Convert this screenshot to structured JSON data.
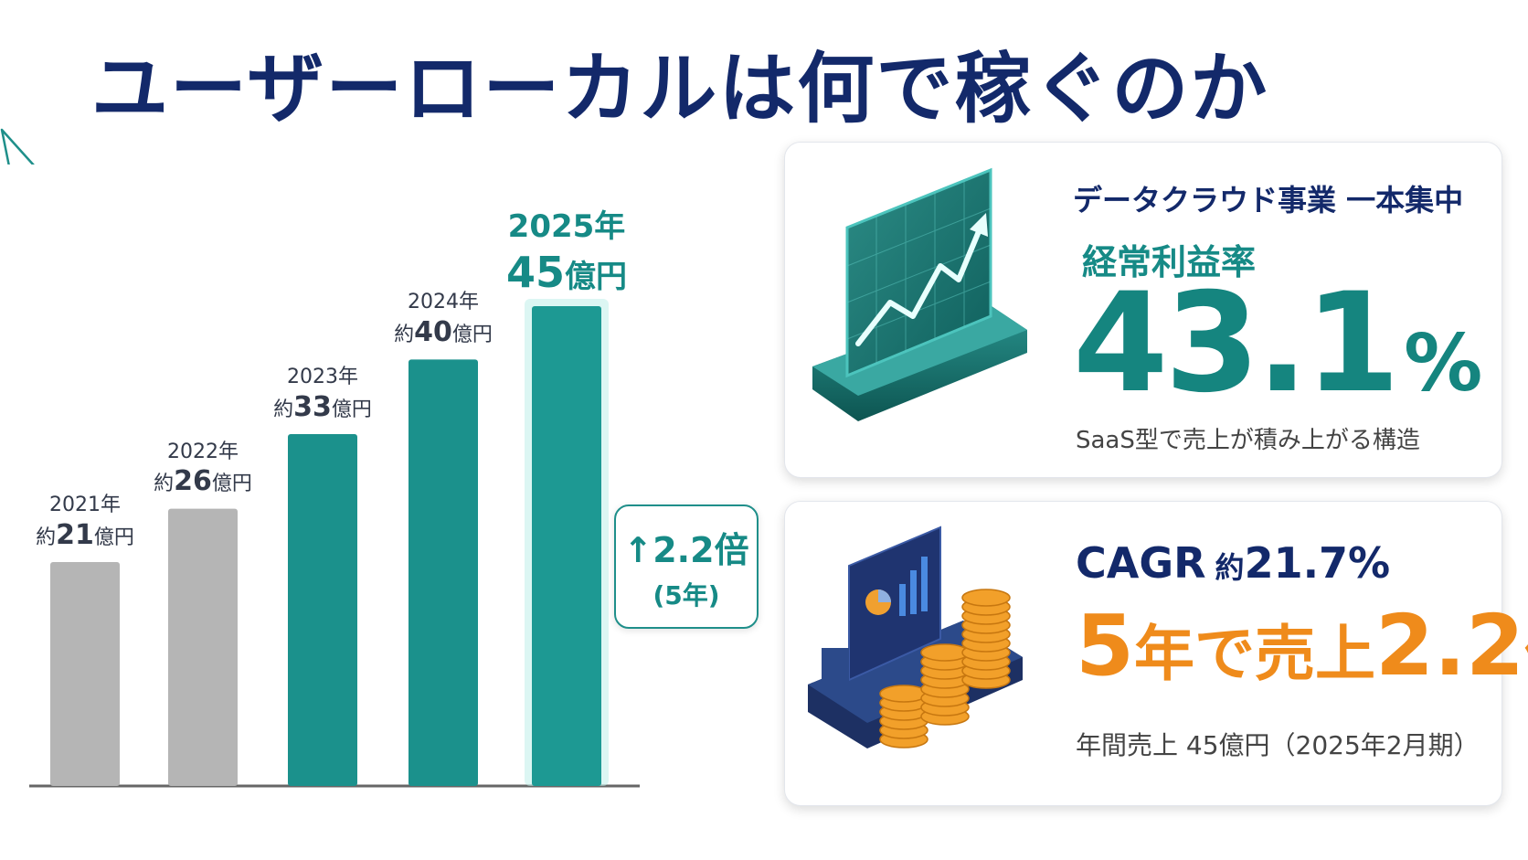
{
  "title": "ユーザーローカルは何で稼ぐのか",
  "chart_data": {
    "type": "bar",
    "categories": [
      "2021年",
      "2022年",
      "2023年",
      "2024年",
      "2025年"
    ],
    "values": [
      21,
      26,
      33,
      40,
      45
    ],
    "value_labels": [
      {
        "prefix": "約",
        "num": "21",
        "unit": "億円"
      },
      {
        "prefix": "約",
        "num": "26",
        "unit": "億円"
      },
      {
        "prefix": "約",
        "num": "33",
        "unit": "億円"
      },
      {
        "prefix": "約",
        "num": "40",
        "unit": "億円"
      },
      {
        "prefix": "",
        "num": "45",
        "unit": "億円"
      }
    ],
    "highlight_index": 4,
    "ylim": [
      0,
      48
    ],
    "colors": {
      "past": "#b5b5b5",
      "recent": "#1b918c",
      "highlight": "#1d9993"
    },
    "gray_count": 2,
    "callout": {
      "line1": "↑2.2倍",
      "line2": "(5年)"
    }
  },
  "card1": {
    "heading": "データクラウド事業 一本集中",
    "metric_label": "経常利益率",
    "metric_value": "43.1",
    "metric_unit": "%",
    "note": "SaaS型で売上が積み上がる構造",
    "illustration": "rising-chart-screen-icon"
  },
  "card2": {
    "heading_a": "CAGR",
    "heading_b": "約",
    "heading_c": "21.7%",
    "big_a": "5",
    "big_b": "年で売上",
    "big_c": "2.2",
    "big_d": "倍",
    "note": "年間売上 45億円（2025年2月期）",
    "illustration": "coins-dashboard-icon"
  },
  "colors": {
    "navy": "#13296a",
    "teal": "#168a86",
    "orange": "#ef8b1b",
    "gray": "#b5b5b5"
  }
}
